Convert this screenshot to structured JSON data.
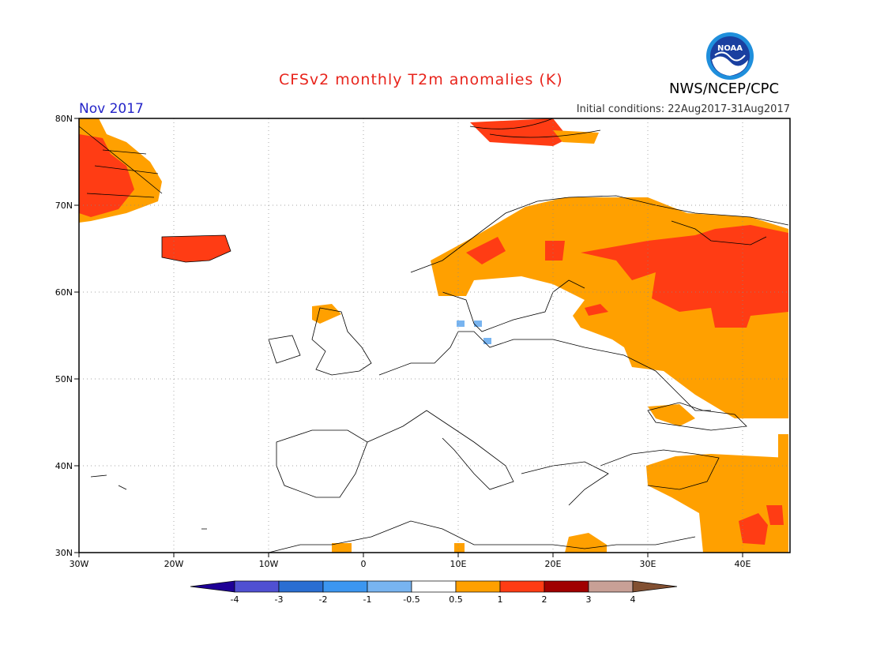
{
  "header": {
    "title": "CFSv2 monthly T2m anomalies (K)",
    "agency": "NWS/NCEP/CPC",
    "month": "Nov 2017",
    "initial_conditions": "Initial conditions: 22Aug2017-31Aug2017",
    "logo_text": "NOAA"
  },
  "map": {
    "lat_ticks": [
      "80N",
      "70N",
      "60N",
      "50N",
      "40N",
      "30N"
    ],
    "lon_ticks": [
      "30W",
      "20W",
      "10W",
      "0",
      "10E",
      "20E",
      "30E",
      "40E"
    ],
    "extent": {
      "lon_min": -30,
      "lon_max": 45,
      "lat_min": 30,
      "lat_max": 80
    }
  },
  "colorbar": {
    "labels": [
      "-4",
      "-3",
      "-2",
      "-1",
      "-0.5",
      "0.5",
      "1",
      "2",
      "3",
      "4"
    ],
    "colors": [
      "#1e0096",
      "#5050d2",
      "#2a6ed2",
      "#3c96f0",
      "#78b4f0",
      "#ffffff",
      "#ffa000",
      "#ff3c14",
      "#a00000",
      "#c8a096",
      "#825032"
    ]
  }
}
